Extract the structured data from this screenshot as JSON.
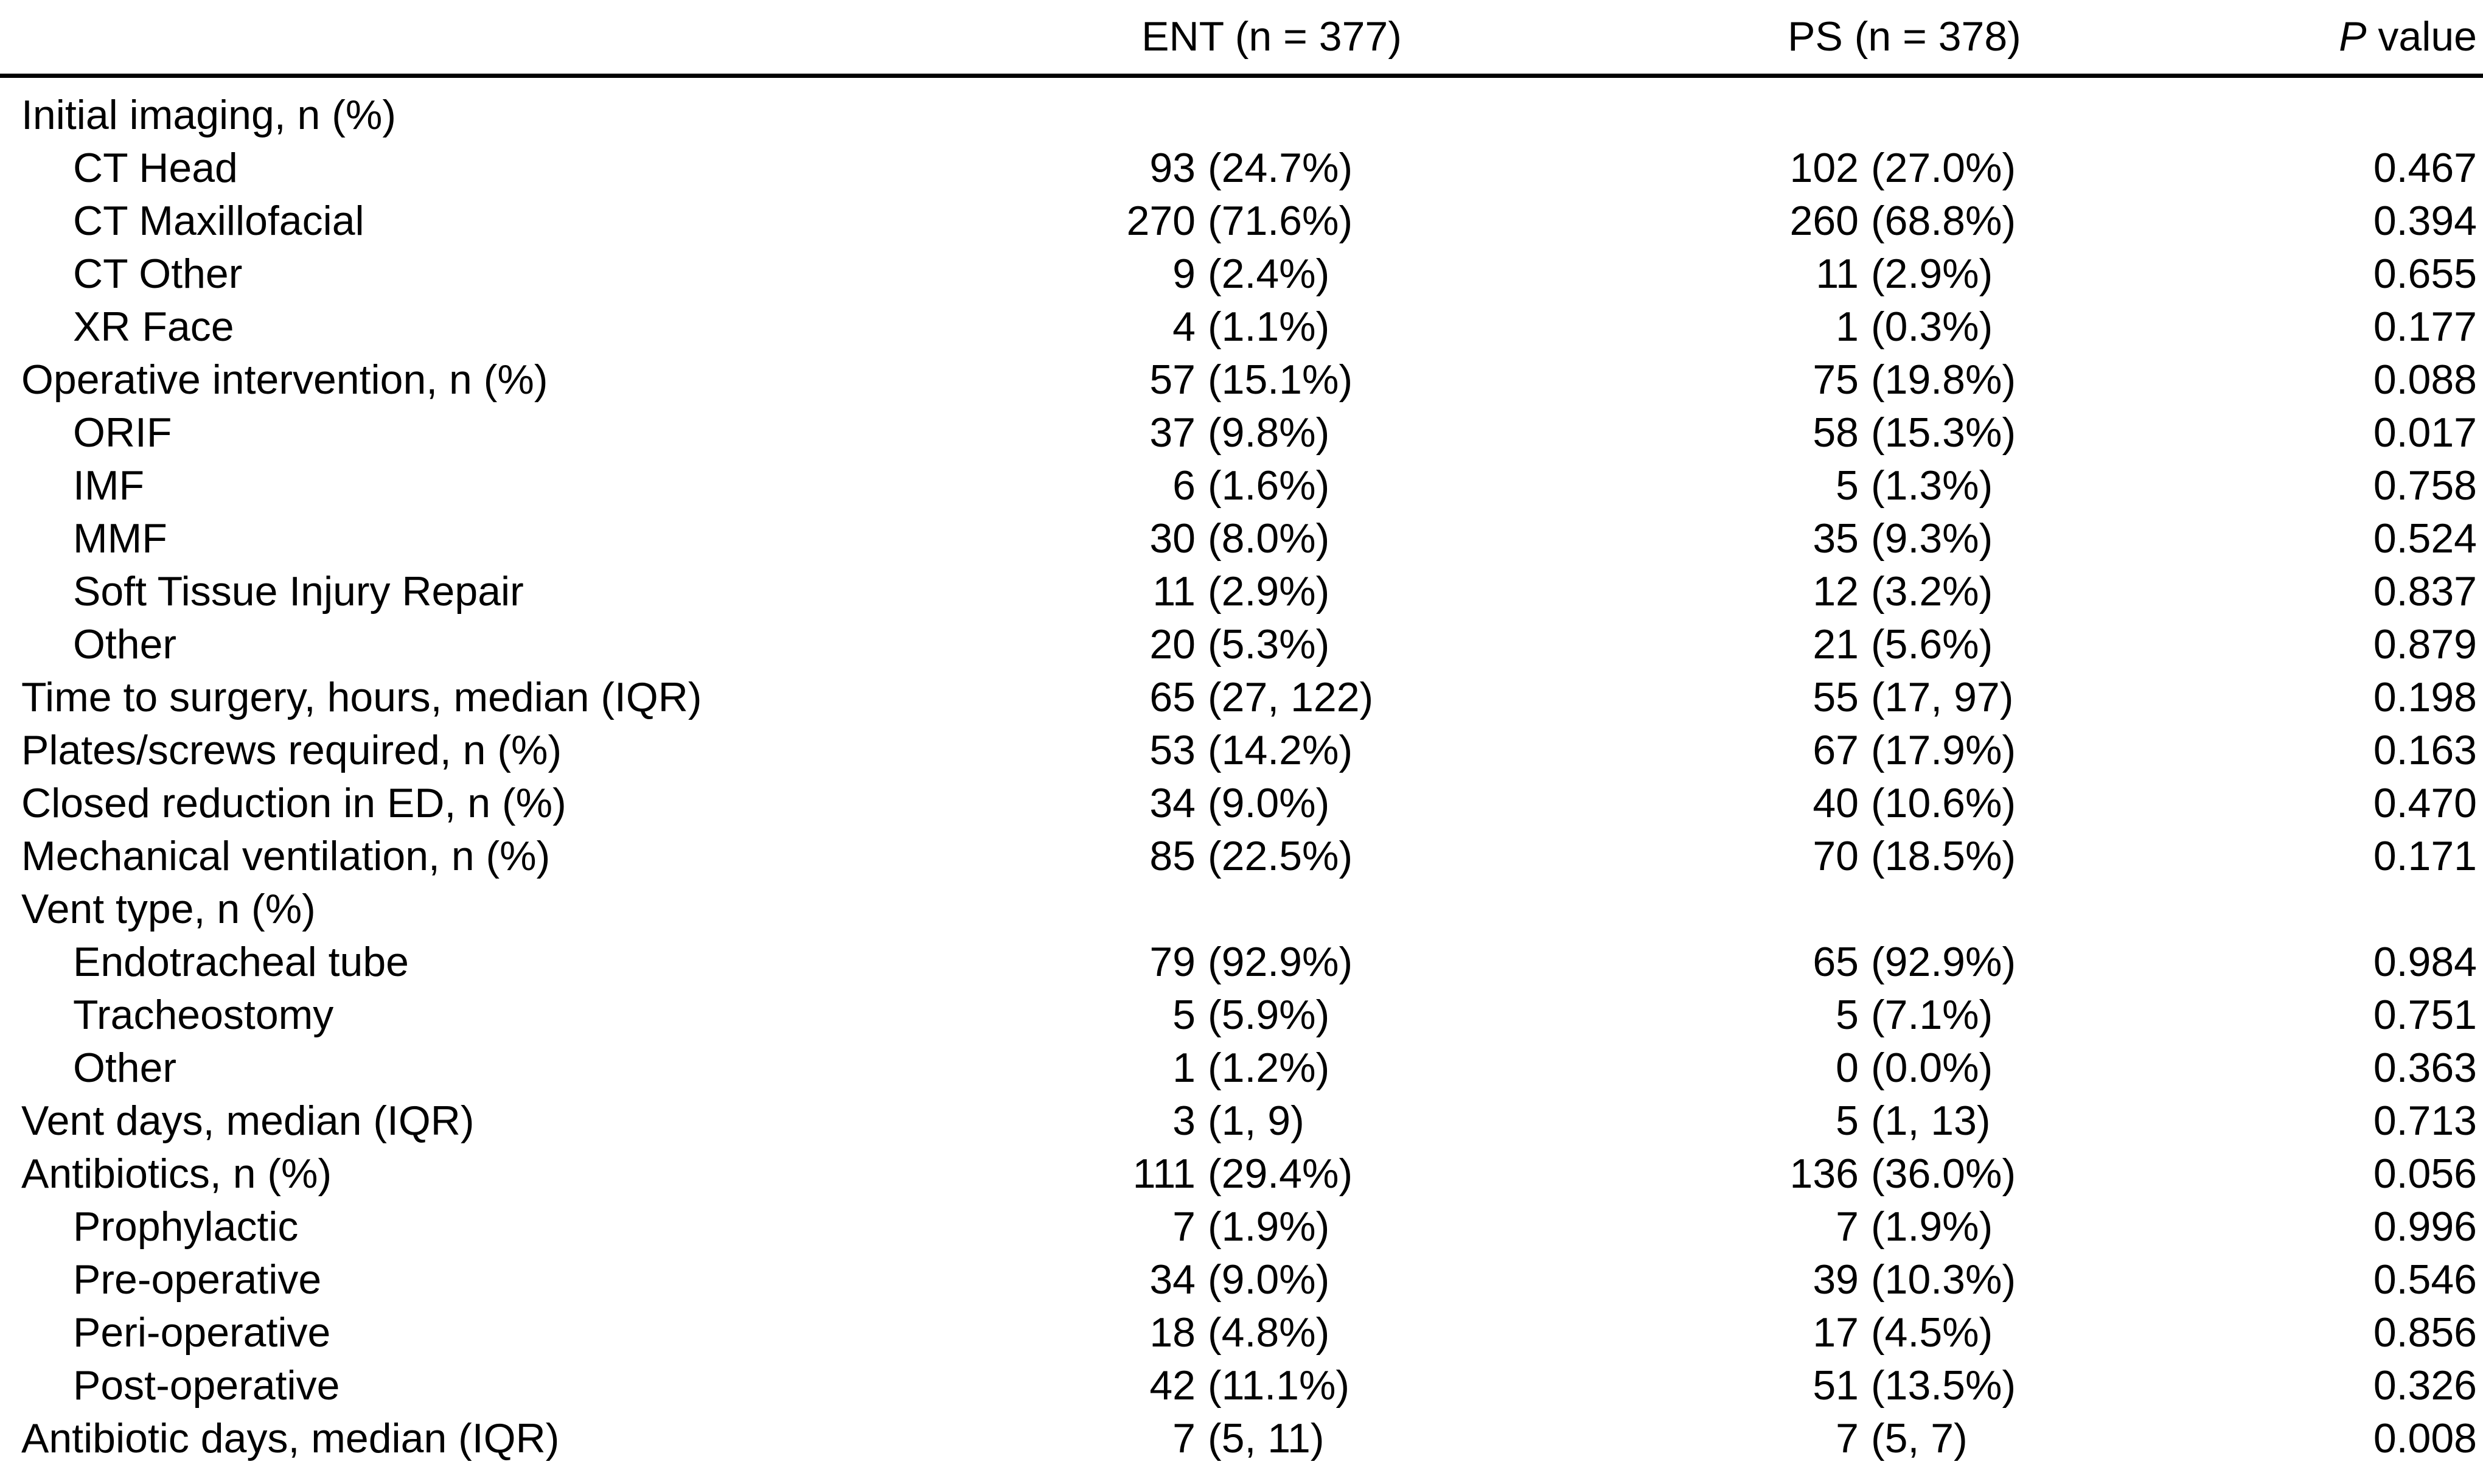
{
  "table": {
    "header": {
      "ent": "ENT (n = 377)",
      "ps": "PS (n = 378)",
      "p_italic": "P",
      "p_rest": " value"
    },
    "rows": [
      {
        "label": "Initial imaging, n (%)",
        "indent": 0,
        "ent": "",
        "ps": "",
        "p": ""
      },
      {
        "label": "CT Head",
        "indent": 1,
        "ent": "93 (24.7%)",
        "ps": "102 (27.0%)",
        "p": "0.467"
      },
      {
        "label": "CT Maxillofacial",
        "indent": 1,
        "ent": "270 (71.6%)",
        "ps": "260 (68.8%)",
        "p": "0.394"
      },
      {
        "label": "CT Other",
        "indent": 1,
        "ent": "9 (2.4%)",
        "ps": "11 (2.9%)",
        "p": "0.655"
      },
      {
        "label": "XR Face",
        "indent": 1,
        "ent": "4 (1.1%)",
        "ps": "1 (0.3%)",
        "p": "0.177"
      },
      {
        "label": "Operative intervention, n (%)",
        "indent": 0,
        "ent": "57 (15.1%)",
        "ps": "75 (19.8%)",
        "p": "0.088"
      },
      {
        "label": "ORIF",
        "indent": 1,
        "ent": "37 (9.8%)",
        "ps": "58 (15.3%)",
        "p": "0.017"
      },
      {
        "label": "IMF",
        "indent": 1,
        "ent": "6 (1.6%)",
        "ps": "5 (1.3%)",
        "p": "0.758"
      },
      {
        "label": "MMF",
        "indent": 1,
        "ent": "30 (8.0%)",
        "ps": "35 (9.3%)",
        "p": "0.524"
      },
      {
        "label": "Soft Tissue Injury Repair",
        "indent": 1,
        "ent": "11 (2.9%)",
        "ps": "12 (3.2%)",
        "p": "0.837"
      },
      {
        "label": "Other",
        "indent": 1,
        "ent": "20 (5.3%)",
        "ps": "21 (5.6%)",
        "p": "0.879"
      },
      {
        "label": "Time to surgery, hours, median (IQR)",
        "indent": 0,
        "ent": "65 (27, 122)",
        "ps": "55 (17, 97)",
        "p": "0.198"
      },
      {
        "label": "Plates/screws required, n (%)",
        "indent": 0,
        "ent": "53 (14.2%)",
        "ps": "67 (17.9%)",
        "p": "0.163"
      },
      {
        "label": "Closed reduction in ED, n (%)",
        "indent": 0,
        "ent": "34 (9.0%)",
        "ps": "40 (10.6%)",
        "p": "0.470"
      },
      {
        "label": "Mechanical ventilation, n (%)",
        "indent": 0,
        "ent": "85 (22.5%)",
        "ps": "70 (18.5%)",
        "p": "0.171"
      },
      {
        "label": "Vent type, n (%)",
        "indent": 0,
        "ent": "",
        "ps": "",
        "p": ""
      },
      {
        "label": "Endotracheal tube",
        "indent": 1,
        "ent": "79 (92.9%)",
        "ps": "65 (92.9%)",
        "p": "0.984"
      },
      {
        "label": "Tracheostomy",
        "indent": 1,
        "ent": "5 (5.9%)",
        "ps": "5 (7.1%)",
        "p": "0.751"
      },
      {
        "label": "Other",
        "indent": 1,
        "ent": "1 (1.2%)",
        "ps": "0 (0.0%)",
        "p": "0.363"
      },
      {
        "label": "Vent days, median (IQR)",
        "indent": 0,
        "ent": "3 (1, 9)",
        "ps": "5 (1, 13)",
        "p": "0.713"
      },
      {
        "label": "Antibiotics, n (%)",
        "indent": 0,
        "ent": "111 (29.4%)",
        "ps": "136 (36.0%)",
        "p": "0.056"
      },
      {
        "label": "Prophylactic",
        "indent": 1,
        "ent": "7 (1.9%)",
        "ps": "7 (1.9%)",
        "p": "0.996"
      },
      {
        "label": "Pre-operative",
        "indent": 1,
        "ent": "34 (9.0%)",
        "ps": "39 (10.3%)",
        "p": "0.546"
      },
      {
        "label": "Peri-operative",
        "indent": 1,
        "ent": "18 (4.8%)",
        "ps": "17 (4.5%)",
        "p": "0.856"
      },
      {
        "label": "Post-operative",
        "indent": 1,
        "ent": "42 (11.1%)",
        "ps": "51 (13.5%)",
        "p": "0.326"
      },
      {
        "label": "Antibiotic days, median (IQR)",
        "indent": 0,
        "ent": "7 (5, 11)",
        "ps": "7 (5, 7)",
        "p": "0.008"
      }
    ]
  }
}
